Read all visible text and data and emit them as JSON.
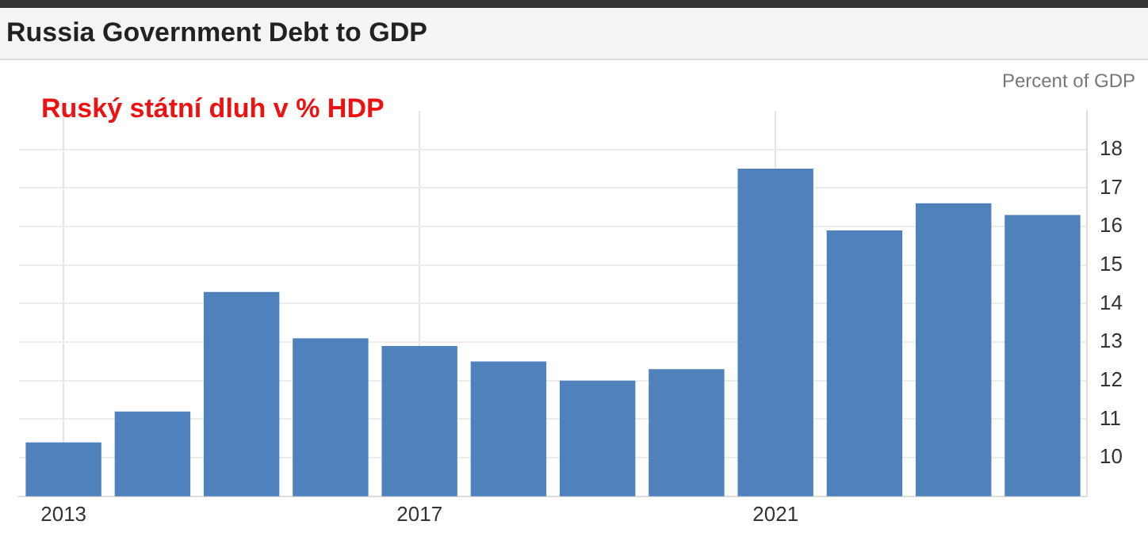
{
  "chart_data": {
    "type": "bar",
    "title": "Russia Government Debt to GDP",
    "ylabel": "Percent of GDP",
    "annotations": [
      "Ruský státní dluh v % HDP"
    ],
    "categories": [
      "2013",
      null,
      null,
      null,
      "2017",
      null,
      null,
      null,
      "2021",
      null,
      null,
      null
    ],
    "values": [
      10.4,
      11.2,
      14.3,
      13.1,
      12.9,
      12.5,
      12.0,
      12.3,
      17.5,
      15.9,
      16.6,
      16.3
    ],
    "color": "#4f81bd",
    "ylim": [
      9,
      19
    ],
    "yticks": [
      10,
      11,
      12,
      13,
      14,
      15,
      16,
      17,
      18
    ],
    "grid": true,
    "legend": false
  }
}
